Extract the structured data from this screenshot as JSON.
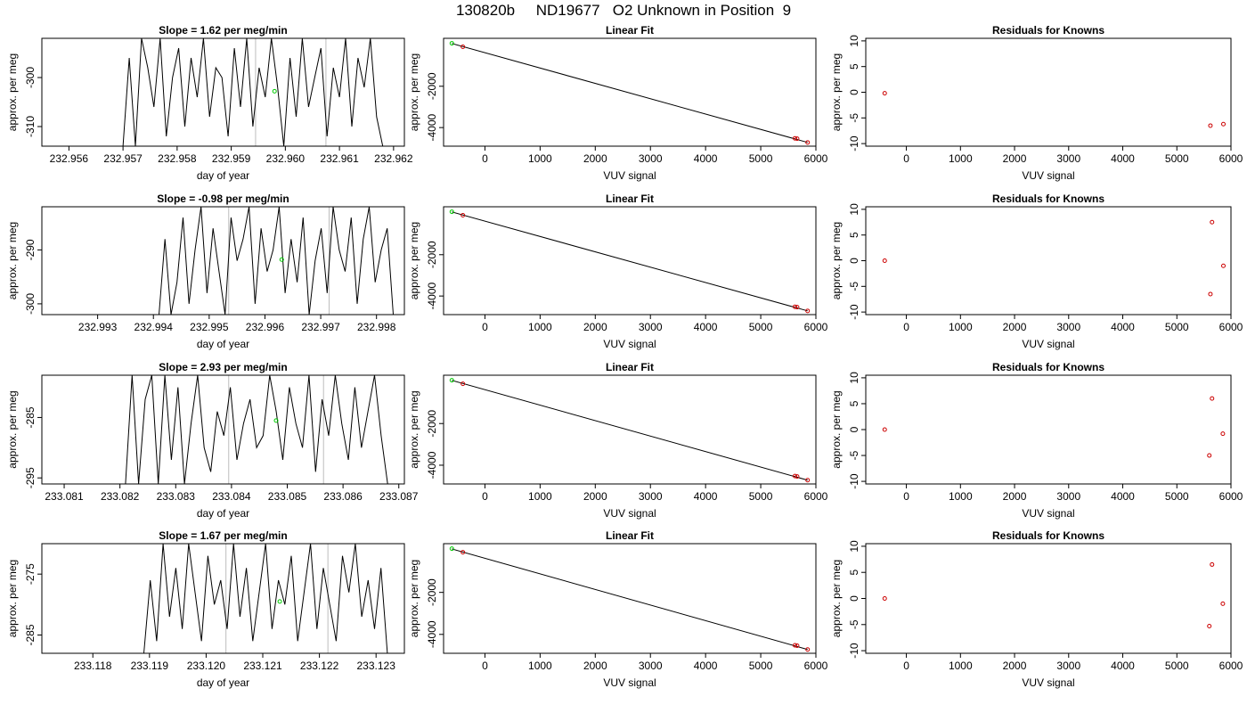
{
  "figure_title": "130820b     ND19677   O2 Unknown in Position  9",
  "colors": {
    "trace": "#000000",
    "marker_green": "#00cc00",
    "marker_red": "#cc0000",
    "axis": "#000000",
    "gridline_gray": "#bdbdbd"
  },
  "chart_data": [
    {
      "type": "line",
      "row": 1,
      "panel": "slope",
      "title": "Slope =  1.62  per meg/min",
      "xlabel": "day of year",
      "ylabel": "approx. per meg",
      "xlim": [
        232.9555,
        232.9622
      ],
      "ylim": [
        -314,
        -292
      ],
      "xticks": [
        "232.956",
        "232.957",
        "232.958",
        "232.959",
        "232.960",
        "232.961",
        "232.962"
      ],
      "yticks": [
        -310,
        -300
      ],
      "trace_x": [
        232.957,
        232.9618
      ],
      "trace_y": [
        -314,
        -296,
        -314,
        -292,
        -298,
        -306,
        -292,
        -312,
        -300,
        -294,
        -310,
        -296,
        -304,
        -292,
        -308,
        -298,
        -300,
        -312,
        -294,
        -306,
        -292,
        -310,
        -298,
        -304,
        -292,
        -302,
        -314,
        -296,
        -308,
        -292,
        -306,
        -300,
        -294,
        -312,
        -298,
        -304,
        -292,
        -310,
        -296,
        -302,
        -292,
        -308,
        -314
      ],
      "vlines": [
        232.95945,
        232.96075
      ],
      "green_point": [
        232.9598,
        -302.8
      ]
    },
    {
      "type": "scatter",
      "row": 1,
      "panel": "fit",
      "title": "Linear Fit",
      "xlabel": "VUV signal",
      "ylabel": "approx. per meg",
      "xlim": [
        -750,
        6000
      ],
      "ylim": [
        -4900,
        320
      ],
      "xticks": [
        0,
        1000,
        2000,
        3000,
        4000,
        5000,
        6000
      ],
      "yticks": [
        -4000,
        -2000
      ],
      "line": [
        [
          -600,
          70
        ],
        [
          5850,
          -4720
        ]
      ],
      "points_green": [
        [
          -600,
          80
        ]
      ],
      "points_red": [
        [
          -400,
          -90
        ],
        [
          5620,
          -4520
        ],
        [
          5660,
          -4540
        ],
        [
          5850,
          -4720
        ]
      ]
    },
    {
      "type": "scatter",
      "row": 1,
      "panel": "residuals",
      "title": "Residuals for Knowns",
      "xlabel": "VUV signal",
      "ylabel": "approx. per meg",
      "xlim": [
        -750,
        6000
      ],
      "ylim": [
        -10.5,
        10.5
      ],
      "xticks": [
        0,
        1000,
        2000,
        3000,
        4000,
        5000,
        6000
      ],
      "yticks": [
        -10,
        -5,
        0,
        5,
        10
      ],
      "points_red": [
        [
          -400,
          -0.2
        ],
        [
          5620,
          -6.5
        ],
        [
          5860,
          -6.2
        ]
      ]
    },
    {
      "type": "line",
      "row": 2,
      "panel": "slope",
      "title": "Slope =  -0.98  per meg/min",
      "xlabel": "day of year",
      "ylabel": "approx. per meg",
      "xlim": [
        232.992,
        232.9985
      ],
      "ylim": [
        -302,
        -282
      ],
      "xticks": [
        "232.993",
        "232.994",
        "232.995",
        "232.996",
        "232.997",
        "232.998"
      ],
      "yticks": [
        -300,
        -290
      ],
      "trace_x": [
        232.9941,
        232.9983
      ],
      "trace_y": [
        -302,
        -288,
        -302,
        -296,
        -284,
        -300,
        -290,
        -282,
        -298,
        -286,
        -294,
        -302,
        -284,
        -292,
        -288,
        -282,
        -300,
        -286,
        -294,
        -290,
        -282,
        -298,
        -288,
        -296,
        -284,
        -302,
        -292,
        -286,
        -298,
        -282,
        -290,
        -294,
        -284,
        -300,
        -288,
        -282,
        -296,
        -290,
        -286,
        -302
      ],
      "vlines": [
        232.99535,
        232.99715
      ],
      "green_point": [
        232.9963,
        -291.8
      ]
    },
    {
      "type": "scatter",
      "row": 2,
      "panel": "fit",
      "title": "Linear Fit",
      "xlabel": "VUV signal",
      "ylabel": "approx. per meg",
      "xlim": [
        -750,
        6000
      ],
      "ylim": [
        -4900,
        320
      ],
      "xticks": [
        0,
        1000,
        2000,
        3000,
        4000,
        5000,
        6000
      ],
      "yticks": [
        -4000,
        -2000
      ],
      "line": [
        [
          -600,
          70
        ],
        [
          5850,
          -4720
        ]
      ],
      "points_green": [
        [
          -600,
          80
        ]
      ],
      "points_red": [
        [
          -400,
          -90
        ],
        [
          5620,
          -4520
        ],
        [
          5660,
          -4540
        ],
        [
          5850,
          -4720
        ]
      ]
    },
    {
      "type": "scatter",
      "row": 2,
      "panel": "residuals",
      "title": "Residuals for Knowns",
      "xlabel": "VUV signal",
      "ylabel": "approx. per meg",
      "xlim": [
        -750,
        6000
      ],
      "ylim": [
        -10.5,
        10.5
      ],
      "xticks": [
        0,
        1000,
        2000,
        3000,
        4000,
        5000,
        6000
      ],
      "yticks": [
        -10,
        -5,
        0,
        5,
        10
      ],
      "points_red": [
        [
          -400,
          0
        ],
        [
          5650,
          7.5
        ],
        [
          5620,
          -6.5
        ],
        [
          5860,
          -1
        ]
      ]
    },
    {
      "type": "line",
      "row": 3,
      "panel": "slope",
      "title": "Slope =  2.93  per meg/min",
      "xlabel": "day of year",
      "ylabel": "approx. per meg",
      "xlim": [
        233.0806,
        233.0871
      ],
      "ylim": [
        -296,
        -278
      ],
      "xticks": [
        "233.081",
        "233.082",
        "233.083",
        "233.084",
        "233.085",
        "233.086",
        "233.087"
      ],
      "yticks": [
        -295,
        -285
      ],
      "trace_x": [
        233.0821,
        233.0868
      ],
      "trace_y": [
        -296,
        -278,
        -296,
        -282,
        -278,
        -296,
        -278,
        -292,
        -280,
        -296,
        -286,
        -278,
        -290,
        -294,
        -284,
        -288,
        -280,
        -292,
        -286,
        -282,
        -290,
        -288,
        -278,
        -284,
        -292,
        -280,
        -286,
        -290,
        -278,
        -294,
        -282,
        -288,
        -278,
        -286,
        -292,
        -280,
        -290,
        -284,
        -278,
        -288,
        -296
      ],
      "vlines": [
        233.08395,
        233.08565
      ],
      "green_point": [
        233.0848,
        -285.5
      ]
    },
    {
      "type": "scatter",
      "row": 3,
      "panel": "fit",
      "title": "Linear Fit",
      "xlabel": "VUV signal",
      "ylabel": "approx. per meg",
      "xlim": [
        -750,
        6000
      ],
      "ylim": [
        -4900,
        320
      ],
      "xticks": [
        0,
        1000,
        2000,
        3000,
        4000,
        5000,
        6000
      ],
      "yticks": [
        -4000,
        -2000
      ],
      "line": [
        [
          -600,
          70
        ],
        [
          5850,
          -4720
        ]
      ],
      "points_green": [
        [
          -600,
          80
        ]
      ],
      "points_red": [
        [
          -400,
          -90
        ],
        [
          5620,
          -4520
        ],
        [
          5660,
          -4540
        ],
        [
          5850,
          -4720
        ]
      ]
    },
    {
      "type": "scatter",
      "row": 3,
      "panel": "residuals",
      "title": "Residuals for Knowns",
      "xlabel": "VUV signal",
      "ylabel": "approx. per meg",
      "xlim": [
        -750,
        6000
      ],
      "ylim": [
        -10.5,
        10.5
      ],
      "xticks": [
        0,
        1000,
        2000,
        3000,
        4000,
        5000,
        6000
      ],
      "yticks": [
        -10,
        -5,
        0,
        5,
        10
      ],
      "points_red": [
        [
          -400,
          0
        ],
        [
          5650,
          6
        ],
        [
          5600,
          -5
        ],
        [
          5850,
          -0.8
        ]
      ]
    },
    {
      "type": "line",
      "row": 4,
      "panel": "slope",
      "title": "Slope =  1.67  per meg/min",
      "xlabel": "day of year",
      "ylabel": "approx. per meg",
      "xlim": [
        233.1171,
        233.1235
      ],
      "ylim": [
        -288,
        -270
      ],
      "xticks": [
        "233.118",
        "233.119",
        "233.120",
        "233.121",
        "233.122",
        "233.123"
      ],
      "yticks": [
        -285,
        -275
      ],
      "trace_x": [
        233.1189,
        233.1232
      ],
      "trace_y": [
        -288,
        -276,
        -286,
        -270,
        -282,
        -274,
        -284,
        -270,
        -278,
        -286,
        -272,
        -280,
        -276,
        -284,
        -270,
        -282,
        -274,
        -286,
        -278,
        -270,
        -284,
        -276,
        -280,
        -272,
        -286,
        -278,
        -270,
        -284,
        -274,
        -280,
        -286,
        -272,
        -278,
        -270,
        -282,
        -276,
        -284,
        -274,
        -288
      ],
      "vlines": [
        233.12035,
        233.12215
      ],
      "green_point": [
        233.1213,
        -279.5
      ]
    },
    {
      "type": "scatter",
      "row": 4,
      "panel": "fit",
      "title": "Linear Fit",
      "xlabel": "VUV signal",
      "ylabel": "approx. per meg",
      "xlim": [
        -750,
        6000
      ],
      "ylim": [
        -4900,
        320
      ],
      "xticks": [
        0,
        1000,
        2000,
        3000,
        4000,
        5000,
        6000
      ],
      "yticks": [
        -4000,
        -2000
      ],
      "line": [
        [
          -600,
          70
        ],
        [
          5850,
          -4720
        ]
      ],
      "points_green": [
        [
          -600,
          80
        ]
      ],
      "points_red": [
        [
          -400,
          -90
        ],
        [
          5620,
          -4520
        ],
        [
          5660,
          -4540
        ],
        [
          5850,
          -4720
        ]
      ]
    },
    {
      "type": "scatter",
      "row": 4,
      "panel": "residuals",
      "title": "Residuals for Knowns",
      "xlabel": "VUV signal",
      "ylabel": "approx. per meg",
      "xlim": [
        -750,
        6000
      ],
      "ylim": [
        -10.5,
        10.5
      ],
      "xticks": [
        0,
        1000,
        2000,
        3000,
        4000,
        5000,
        6000
      ],
      "yticks": [
        -10,
        -5,
        0,
        5,
        10
      ],
      "points_red": [
        [
          -400,
          0
        ],
        [
          5650,
          6.5
        ],
        [
          5600,
          -5.3
        ],
        [
          5850,
          -1
        ]
      ]
    }
  ]
}
